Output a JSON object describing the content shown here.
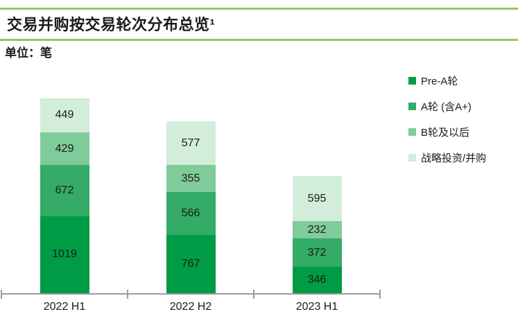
{
  "header": {
    "title": "交易并购按交易轮次分布总览¹",
    "unit_label": "单位：笔",
    "accent_color": "#95C75A"
  },
  "chart_data": {
    "type": "bar",
    "stacked": true,
    "title": "交易并购按交易轮次分布总览¹",
    "unit": "笔",
    "categories": [
      "2022 H1",
      "2022 H2",
      "2023 H1"
    ],
    "series": [
      {
        "name": "Pre-A轮",
        "color": "#009B45",
        "values": [
          1019,
          767,
          346
        ]
      },
      {
        "name": "A轮 (含A+)",
        "color": "#34AB66",
        "values": [
          672,
          566,
          372
        ]
      },
      {
        "name": "B轮及以后",
        "color": "#7FCB99",
        "values": [
          429,
          355,
          232
        ]
      },
      {
        "name": "战略投资/并购",
        "color": "#D3EDDB",
        "values": [
          449,
          577,
          595
        ]
      }
    ],
    "totals": [
      2569,
      2265,
      1545
    ],
    "value_labels": "inside",
    "legend_position": "right",
    "grid": false,
    "axis_line_color": "#9C9C9C",
    "label_color": "#1A1A1A"
  }
}
